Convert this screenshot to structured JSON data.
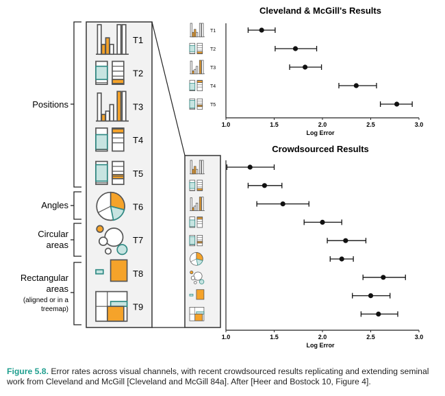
{
  "chart_data": [
    {
      "type": "scatter",
      "subtype": "error-bar",
      "title": "Cleveland & McGill's  Results",
      "xlabel": "Log Error",
      "xlim": [
        1.0,
        3.0
      ],
      "xticks": [
        "1.0",
        "1.5",
        "2.0",
        "2.5",
        "3.0"
      ],
      "categories": [
        "T1",
        "T2",
        "T3",
        "T4",
        "T5"
      ],
      "values": [
        1.37,
        1.72,
        1.82,
        2.35,
        2.77
      ],
      "ci_low": [
        1.23,
        1.51,
        1.66,
        2.17,
        2.6
      ],
      "ci_high": [
        1.51,
        1.94,
        1.99,
        2.56,
        2.93
      ],
      "grid": false
    },
    {
      "type": "scatter",
      "subtype": "error-bar",
      "title": "Crowdsourced Results",
      "xlabel": "Log Error",
      "xlim": [
        1.0,
        3.0
      ],
      "xticks": [
        "1.0",
        "1.5",
        "2.0",
        "2.5",
        "3.0"
      ],
      "categories": [
        "T1",
        "T2",
        "T3",
        "T4",
        "T5",
        "T6",
        "T7",
        "T8",
        "T9"
      ],
      "values": [
        1.25,
        1.4,
        1.59,
        2.0,
        2.24,
        2.2,
        2.63,
        2.5,
        2.58
      ],
      "ci_low": [
        1.01,
        1.23,
        1.32,
        1.81,
        2.05,
        2.08,
        2.42,
        2.31,
        2.4
      ],
      "ci_high": [
        1.5,
        1.58,
        1.86,
        2.2,
        2.45,
        2.32,
        2.86,
        2.7,
        2.78
      ],
      "grid": false
    }
  ],
  "stimulus_panel": {
    "tasks": [
      "T1",
      "T2",
      "T3",
      "T4",
      "T5",
      "T6",
      "T7",
      "T8",
      "T9"
    ],
    "groups": {
      "positions": "Positions",
      "angles": "Angles",
      "circular": [
        "Circular",
        "areas"
      ],
      "rectangular": [
        "Rectangular",
        "areas",
        "(aligned or in a",
        "treemap)"
      ]
    }
  },
  "colors": {
    "orange": "#f5a32a",
    "teal_fill": "#c7e4e1",
    "teal_stroke": "#2f8a84",
    "dark": "#222222",
    "panel_bg": "#f2f2f2",
    "caption_label": "#1f9e8e"
  },
  "caption": {
    "label": "Figure 5.8.",
    "text": "Error rates across visual channels, with recent crowdsourced results replicating and extending seminal work from Cleveland and McGill [Cleveland and McGill 84a]. After [Heer and Bostock 10, Figure 4]."
  }
}
